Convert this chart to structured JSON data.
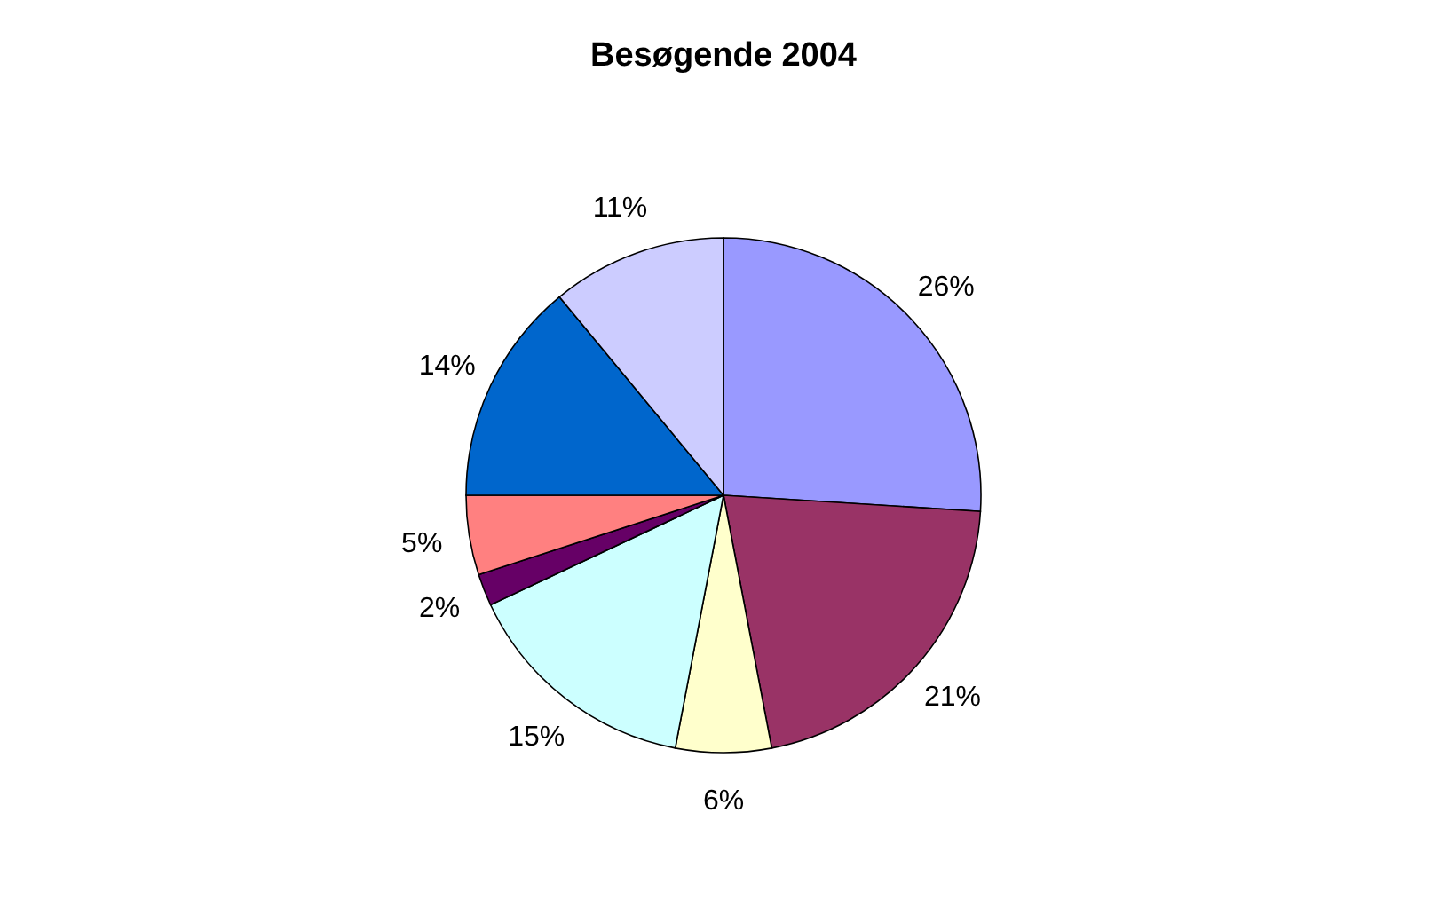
{
  "chart_data": {
    "type": "pie",
    "title": "Besøgende 2004",
    "categories": [
      null,
      null,
      null,
      null,
      null,
      null,
      null,
      null
    ],
    "values": [
      26,
      21,
      6,
      15,
      2,
      5,
      14,
      11
    ],
    "value_labels": [
      "26%",
      "21%",
      "6%",
      "15%",
      "2%",
      "5%",
      "14%",
      "11%"
    ],
    "colors": [
      "#9999ff",
      "#993366",
      "#ffffcc",
      "#ccffff",
      "#660066",
      "#ff8080",
      "#0066cc",
      "#ccccff"
    ],
    "legend": false
  }
}
